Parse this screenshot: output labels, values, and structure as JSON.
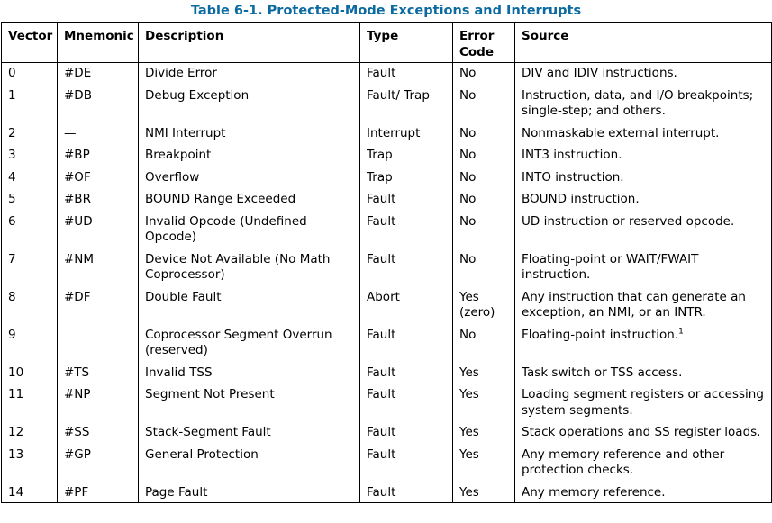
{
  "caption": "Table 6-1.  Protected-Mode Exceptions and Interrupts",
  "headers": {
    "vector": "Vector",
    "mnemonic": "Mnemonic",
    "description": "Description",
    "type": "Type",
    "error_code_line1": "Error",
    "error_code_line2": "Code",
    "source": "Source"
  },
  "rows": [
    {
      "vector": "0",
      "mnemonic": "#DE",
      "description": "Divide Error",
      "type": "Fault",
      "error_code": "No",
      "error_code_note": "",
      "source": "DIV and IDIV instructions.",
      "footnote": ""
    },
    {
      "vector": "1",
      "mnemonic": "#DB",
      "description": "Debug Exception",
      "type": "Fault/ Trap",
      "error_code": "No",
      "error_code_note": "",
      "source": "Instruction, data, and I/O breakpoints; single-step; and others.",
      "footnote": ""
    },
    {
      "vector": "2",
      "mnemonic": "—",
      "description": "NMI Interrupt",
      "type": "Interrupt",
      "error_code": "No",
      "error_code_note": "",
      "source": "Nonmaskable external interrupt.",
      "footnote": ""
    },
    {
      "vector": "3",
      "mnemonic": "#BP",
      "description": "Breakpoint",
      "type": "Trap",
      "error_code": "No",
      "error_code_note": "",
      "source": "INT3 instruction.",
      "footnote": ""
    },
    {
      "vector": "4",
      "mnemonic": "#OF",
      "description": "Overflow",
      "type": "Trap",
      "error_code": "No",
      "error_code_note": "",
      "source": "INTO instruction.",
      "footnote": ""
    },
    {
      "vector": "5",
      "mnemonic": "#BR",
      "description": "BOUND Range Exceeded",
      "type": "Fault",
      "error_code": "No",
      "error_code_note": "",
      "source": "BOUND instruction.",
      "footnote": ""
    },
    {
      "vector": "6",
      "mnemonic": "#UD",
      "description": "Invalid Opcode (Undefined Opcode)",
      "type": "Fault",
      "error_code": "No",
      "error_code_note": "",
      "source": "UD instruction or reserved opcode.",
      "footnote": ""
    },
    {
      "vector": "7",
      "mnemonic": "#NM",
      "description": "Device Not Available (No Math Coprocessor)",
      "type": "Fault",
      "error_code": "No",
      "error_code_note": "",
      "source": "Floating-point or WAIT/FWAIT instruction.",
      "footnote": ""
    },
    {
      "vector": "8",
      "mnemonic": "#DF",
      "description": "Double Fault",
      "type": "Abort",
      "error_code": "Yes",
      "error_code_note": "(zero)",
      "source": "Any instruction that can generate an exception, an NMI, or an INTR.",
      "footnote": ""
    },
    {
      "vector": "9",
      "mnemonic": "",
      "description": "Coprocessor Segment Overrun (reserved)",
      "type": "Fault",
      "error_code": "No",
      "error_code_note": "",
      "source": "Floating-point instruction.",
      "footnote": "1"
    },
    {
      "vector": "10",
      "mnemonic": "#TS",
      "description": "Invalid TSS",
      "type": "Fault",
      "error_code": "Yes",
      "error_code_note": "",
      "source": "Task switch or TSS access.",
      "footnote": ""
    },
    {
      "vector": "11",
      "mnemonic": "#NP",
      "description": "Segment Not Present",
      "type": "Fault",
      "error_code": "Yes",
      "error_code_note": "",
      "source": "Loading segment registers or accessing system segments.",
      "footnote": ""
    },
    {
      "vector": "12",
      "mnemonic": "#SS",
      "description": "Stack-Segment Fault",
      "type": "Fault",
      "error_code": "Yes",
      "error_code_note": "",
      "source": "Stack operations and SS register loads.",
      "footnote": ""
    },
    {
      "vector": "13",
      "mnemonic": "#GP",
      "description": "General Protection",
      "type": "Fault",
      "error_code": "Yes",
      "error_code_note": "",
      "source": "Any memory reference and other protection checks.",
      "footnote": ""
    },
    {
      "vector": "14",
      "mnemonic": "#PF",
      "description": "Page Fault",
      "type": "Fault",
      "error_code": "Yes",
      "error_code_note": "",
      "source": "Any memory reference.",
      "footnote": ""
    }
  ]
}
